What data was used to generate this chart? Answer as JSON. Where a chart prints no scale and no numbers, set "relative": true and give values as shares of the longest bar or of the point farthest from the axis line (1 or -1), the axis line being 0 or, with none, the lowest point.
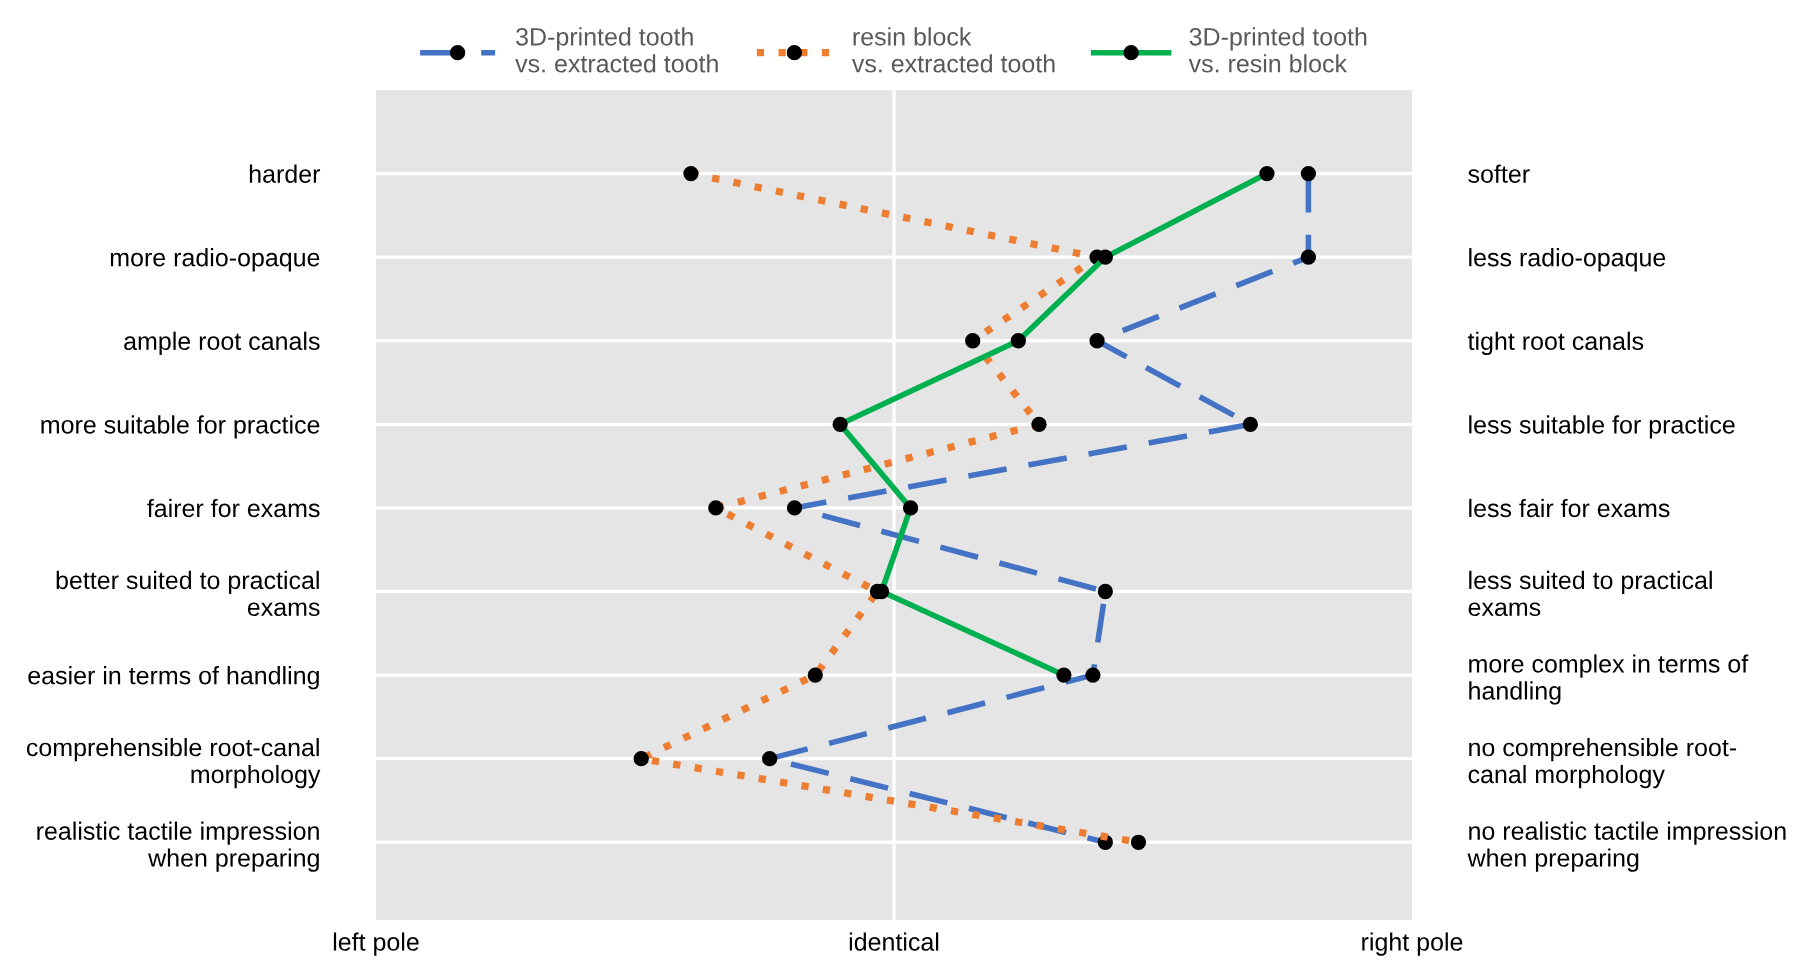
{
  "chart_data": {
    "type": "line",
    "orientation": "horizontal",
    "relative": true,
    "categories": [
      "harder",
      "more radio-opaque",
      "ample root canals",
      "more suitable for practice",
      "fairer for exams",
      "better suited to practical\nexams",
      "easier in terms of handling",
      "comprehensible root-canal\nmorphology",
      "realistic tactile impression\nwhen preparing"
    ],
    "y2_categories": [
      "softer",
      "less radio-opaque",
      "tight root canals",
      "less suitable for practice",
      "less fair for exams",
      "less suited to practical\nexams",
      "more complex in terms of\nhandling",
      "no comprehensible root-\ncanal morphology",
      "no realistic tactile impression\nwhen preparing"
    ],
    "series": [
      {
        "name": "3D-printed tooth\nvs. extracted tooth",
        "color": "#4472c4",
        "line_style": "dashed",
        "values": [
          1,
          1,
          0.49,
          0.86,
          -0.24,
          0.51,
          0.48,
          -0.3,
          0.51
        ]
      },
      {
        "name": "resin block\nvs. extracted tooth",
        "color": "#ed7d31",
        "line_style": "dotted",
        "values": [
          -0.49,
          0.49,
          0.19,
          0.35,
          -0.43,
          -0.04,
          -0.19,
          -0.61,
          0.59
        ]
      },
      {
        "name": "3D-printed tooth\nvs. resin block",
        "color": "#00b050",
        "line_style": "solid",
        "values": [
          0.9,
          0.51,
          0.3,
          -0.13,
          0.04,
          -0.03,
          0.41,
          null,
          null
        ]
      }
    ],
    "annotations": [
      "left pole",
      "identical",
      "right pole"
    ],
    "marker": "circle",
    "grid": "y",
    "legend": "top"
  }
}
